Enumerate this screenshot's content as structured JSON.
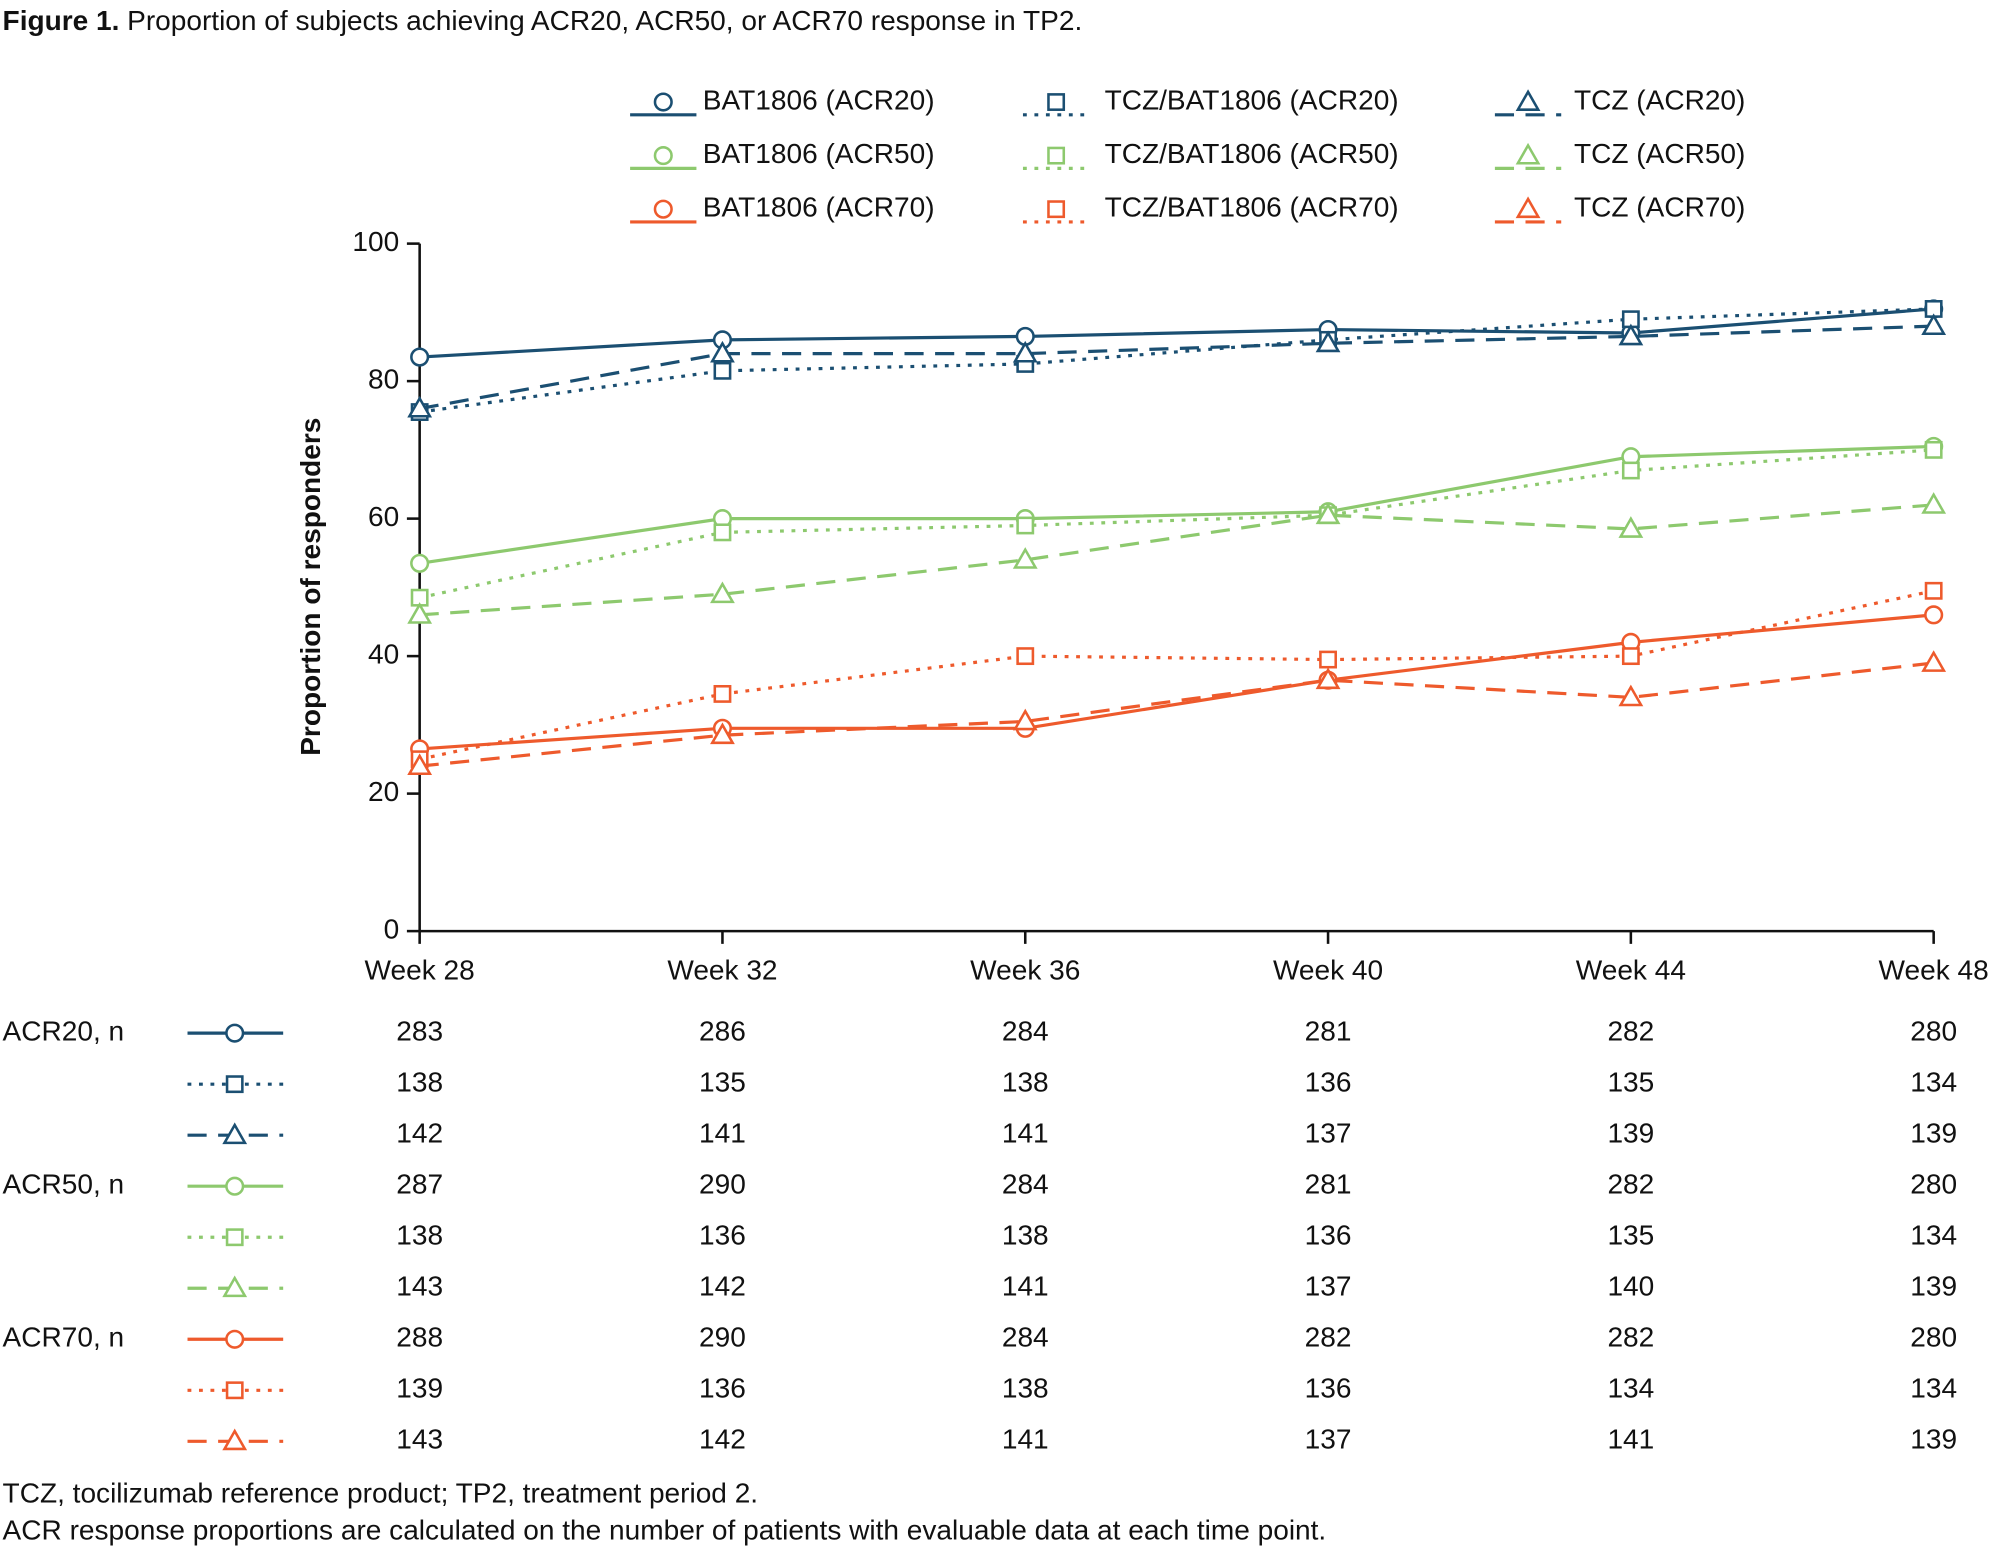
{
  "chart_data": {
    "type": "line",
    "title_label": "Figure 1.",
    "title": "Proportion of subjects achieving ACR20, ACR50, or ACR70 response in TP2.",
    "y_label": "Proportion of responders",
    "categories": [
      "Week 28",
      "Week 32",
      "Week 36",
      "Week 40",
      "Week 44",
      "Week 48"
    ],
    "ylim": [
      0,
      100
    ],
    "yticks": [
      0,
      20,
      40,
      60,
      80,
      100
    ],
    "series": [
      {
        "name": "BAT1806 (ACR20)",
        "color": "#1b4f72",
        "line_style": "solid",
        "marker": "circle",
        "values": [
          83.5,
          86,
          86.5,
          87.5,
          87,
          90.5
        ]
      },
      {
        "name": "TCZ/BAT1806 (ACR20)",
        "color": "#1b4f72",
        "line_style": "dotted",
        "marker": "square",
        "values": [
          75.5,
          81.5,
          82.5,
          86,
          89,
          90.5
        ]
      },
      {
        "name": "TCZ (ACR20)",
        "color": "#1b4f72",
        "line_style": "dashed",
        "marker": "triangle",
        "values": [
          76,
          84,
          84,
          85.5,
          86.5,
          88
        ]
      },
      {
        "name": "BAT1806 (ACR50)",
        "color": "#8dc96e",
        "line_style": "solid",
        "marker": "circle",
        "values": [
          53.5,
          60,
          60,
          61,
          69,
          70.5
        ]
      },
      {
        "name": "TCZ/BAT1806 (ACR50)",
        "color": "#8dc96e",
        "line_style": "dotted",
        "marker": "square",
        "values": [
          48.5,
          58,
          59,
          60.5,
          67,
          70
        ]
      },
      {
        "name": "TCZ (ACR50)",
        "color": "#8dc96e",
        "line_style": "dashed",
        "marker": "triangle",
        "values": [
          46,
          49,
          54,
          60.5,
          58.5,
          62
        ]
      },
      {
        "name": "BAT1806 (ACR70)",
        "color": "#ee5a2c",
        "line_style": "solid",
        "marker": "circle",
        "values": [
          26.5,
          29.5,
          29.5,
          36.5,
          42,
          46
        ]
      },
      {
        "name": "TCZ/BAT1806 (ACR70)",
        "color": "#ee5a2c",
        "line_style": "dotted",
        "marker": "square",
        "values": [
          25,
          34.5,
          40,
          39.5,
          40,
          49.5
        ]
      },
      {
        "name": "TCZ (ACR70)",
        "color": "#ee5a2c",
        "line_style": "dashed",
        "marker": "triangle",
        "values": [
          24,
          28.5,
          30.5,
          36.5,
          34,
          39
        ]
      }
    ],
    "n_table": [
      {
        "label": "ACR20, n",
        "rows": [
          [
            283,
            286,
            284,
            281,
            282,
            280
          ],
          [
            138,
            135,
            138,
            136,
            135,
            134
          ],
          [
            142,
            141,
            141,
            137,
            139,
            139
          ]
        ]
      },
      {
        "label": "ACR50, n",
        "rows": [
          [
            287,
            290,
            284,
            281,
            282,
            280
          ],
          [
            138,
            136,
            138,
            136,
            135,
            134
          ],
          [
            143,
            142,
            141,
            137,
            140,
            139
          ]
        ]
      },
      {
        "label": "ACR70, n",
        "rows": [
          [
            288,
            290,
            284,
            282,
            282,
            280
          ],
          [
            139,
            136,
            138,
            136,
            134,
            134
          ],
          [
            143,
            142,
            141,
            137,
            141,
            139
          ]
        ]
      }
    ],
    "footnotes": [
      "TCZ, tocilizumab reference product; TP2, treatment period 2.",
      "ACR response proportions are calculated on the number of patients with evaluable data at each time point."
    ]
  }
}
